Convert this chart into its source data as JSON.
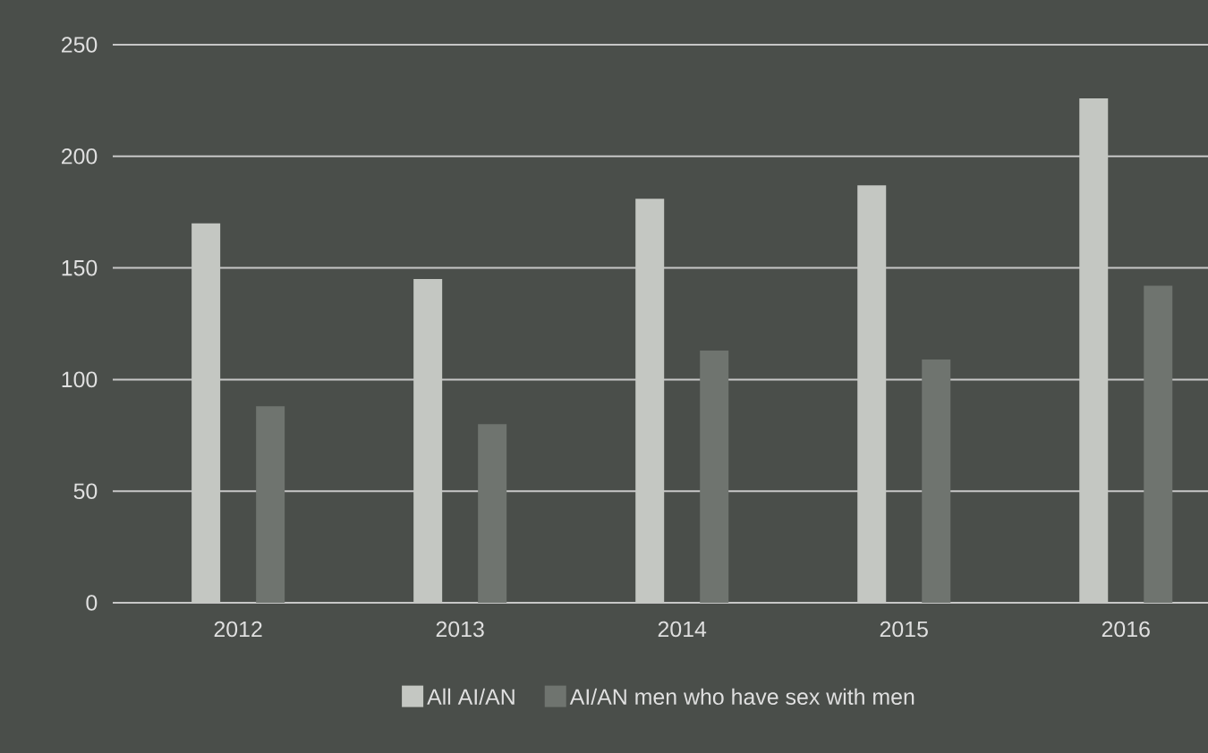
{
  "chart_data": {
    "type": "bar",
    "categories": [
      "2012",
      "2013",
      "2014",
      "2015",
      "2016"
    ],
    "series": [
      {
        "name": "All AI/AN",
        "color": "#c4c7c2",
        "values": [
          170,
          145,
          181,
          187,
          226
        ]
      },
      {
        "name": "AI/AN men who have sex with men",
        "color": "#6f746f",
        "values": [
          88,
          80,
          113,
          109,
          142
        ]
      }
    ],
    "ylim": [
      0,
      250
    ],
    "yticks": [
      0,
      50,
      100,
      150,
      200,
      250
    ],
    "grid": "y",
    "legend": "bottom"
  }
}
